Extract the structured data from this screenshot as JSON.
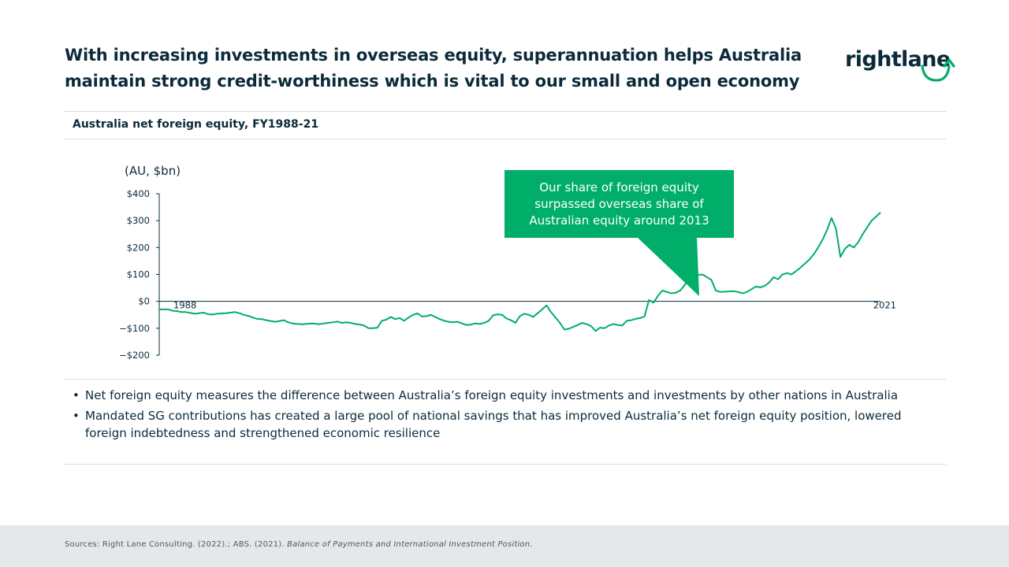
{
  "header": {
    "title_line1": "With increasing investments in overseas equity, superannuation helps Australia",
    "title_line2": "maintain strong credit-worthiness which is vital to our small and open economy"
  },
  "logo": {
    "text": "rightlane",
    "icon": "return-arrow-icon",
    "arrow_color": "#00ae6a"
  },
  "section": {
    "subtitle": "Australia net foreign equity, FY1988-21"
  },
  "chart_data": {
    "type": "line",
    "unit_label": "(AU, $bn)",
    "start_label": "1988",
    "end_label": "2021",
    "ylim": [
      -200,
      400
    ],
    "yticks": [
      400,
      300,
      200,
      100,
      0,
      -100,
      -200
    ],
    "ytick_labels": [
      "$400",
      "$300",
      "$200",
      "$100",
      "$0",
      "−$100",
      "−$200"
    ],
    "x_start": 1988,
    "x_end": 2021,
    "line_color": "#00ae6a",
    "values": [
      -30,
      -30,
      -30,
      -35,
      -36,
      -40,
      -40,
      -43,
      -46,
      -44,
      -42,
      -48,
      -49,
      -46,
      -45,
      -44,
      -42,
      -40,
      -44,
      -50,
      -54,
      -60,
      -65,
      -66,
      -70,
      -73,
      -76,
      -73,
      -70,
      -78,
      -82,
      -84,
      -85,
      -84,
      -82,
      -83,
      -85,
      -82,
      -80,
      -78,
      -75,
      -80,
      -78,
      -80,
      -84,
      -86,
      -90,
      -100,
      -100,
      -98,
      -72,
      -68,
      -58,
      -66,
      -62,
      -72,
      -60,
      -50,
      -45,
      -56,
      -55,
      -50,
      -58,
      -66,
      -72,
      -76,
      -78,
      -76,
      -82,
      -88,
      -86,
      -82,
      -84,
      -80,
      -72,
      -52,
      -48,
      -50,
      -64,
      -70,
      -80,
      -55,
      -46,
      -50,
      -58,
      -44,
      -30,
      -15,
      -40,
      -60,
      -80,
      -105,
      -102,
      -95,
      -88,
      -80,
      -85,
      -92,
      -110,
      -98,
      -100,
      -90,
      -84,
      -88,
      -90,
      -72,
      -70,
      -65,
      -62,
      -56,
      5,
      -5,
      20,
      40,
      35,
      30,
      32,
      40,
      60,
      90,
      95,
      98,
      100,
      90,
      80,
      40,
      35,
      36,
      37,
      38,
      35,
      30,
      35,
      45,
      55,
      52,
      58,
      70,
      90,
      82,
      100,
      105,
      100,
      112,
      125,
      140,
      155,
      175,
      200,
      230,
      265,
      310,
      270,
      165,
      195,
      210,
      200,
      220,
      250,
      275,
      300,
      315,
      330
    ],
    "annotation": {
      "line1": "Our share of foreign equity",
      "line2": "surpassed overseas share of",
      "line3": "Australian equity around 2013",
      "color": "#00ae6a"
    }
  },
  "bullets": [
    "Net foreign equity measures the difference between Australia’s foreign equity investments and investments by other nations in Australia",
    "Mandated SG contributions has created a large pool of national savings that has improved Australia’s net foreign equity position, lowered foreign indebtedness and strengthened economic resilience"
  ],
  "footer": {
    "source_prefix": "Sources: Right Lane Consulting. (2022).; ABS. (2021). ",
    "source_italic": "Balance of Payments and International Investment Position."
  }
}
